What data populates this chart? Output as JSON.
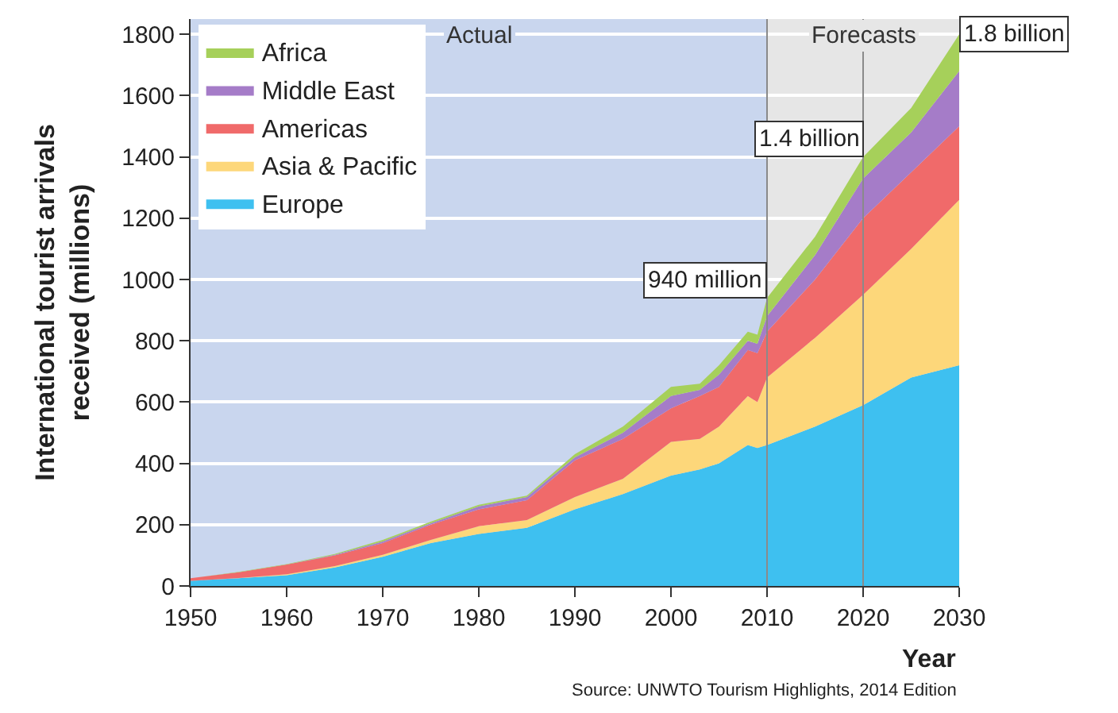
{
  "chart_data": {
    "type": "area",
    "stacked": true,
    "xlabel": "Year",
    "ylabel": "International tourist arrivals received (millions)",
    "x": [
      1950,
      1955,
      1960,
      1965,
      1970,
      1975,
      1980,
      1985,
      1990,
      1995,
      2000,
      2003,
      2005,
      2008,
      2009,
      2010,
      2015,
      2020,
      2025,
      2030
    ],
    "series": [
      {
        "name": "Europe",
        "color": "#3ec0f0",
        "values": [
          17,
          25,
          35,
          60,
          95,
          140,
          170,
          190,
          250,
          300,
          360,
          380,
          400,
          460,
          450,
          460,
          520,
          590,
          680,
          720
        ]
      },
      {
        "name": "Asia & Pacific",
        "color": "#fdd77a",
        "values": [
          0,
          1,
          3,
          5,
          7,
          10,
          25,
          25,
          40,
          50,
          110,
          100,
          120,
          160,
          150,
          220,
          290,
          360,
          420,
          540
        ]
      },
      {
        "name": "Americas",
        "color": "#f06a6a",
        "values": [
          8,
          19,
          32,
          35,
          38,
          50,
          55,
          65,
          120,
          130,
          110,
          140,
          130,
          150,
          160,
          150,
          190,
          250,
          250,
          240
        ]
      },
      {
        "name": "Middle East",
        "color": "#a57cc8",
        "values": [
          0,
          0,
          0,
          2,
          5,
          5,
          10,
          10,
          10,
          20,
          40,
          20,
          40,
          30,
          30,
          50,
          80,
          130,
          130,
          180
        ]
      },
      {
        "name": "Africa",
        "color": "#a6d05a",
        "values": [
          0,
          1,
          1,
          2,
          5,
          5,
          5,
          5,
          10,
          20,
          30,
          20,
          30,
          30,
          30,
          60,
          60,
          70,
          80,
          120
        ]
      }
    ],
    "xlim": [
      1950,
      2030
    ],
    "xticks": [
      1950,
      1960,
      1970,
      1980,
      1990,
      2000,
      2010,
      2020,
      2030
    ],
    "ylim": [
      0,
      1850
    ],
    "yticks": [
      0,
      200,
      400,
      600,
      800,
      1000,
      1200,
      1400,
      1600,
      1800
    ],
    "grid": "y",
    "legend": "top left",
    "bands": [
      {
        "axis": "x",
        "from": 1950,
        "to": 2010,
        "label": "Actual",
        "color": "#c9d6ee"
      },
      {
        "axis": "x",
        "from": 2010,
        "to": 2030,
        "label": "Forecasts",
        "color": "#e6e6e6"
      }
    ],
    "ref_lines": [
      {
        "axis": "x",
        "value": 2010,
        "color": "#8a8a8a"
      },
      {
        "axis": "x",
        "value": 2020,
        "color": "#8a8a8a"
      }
    ],
    "annotations": [
      {
        "text": "940 million",
        "x": 2010,
        "y": 940
      },
      {
        "text": "1.4 billion",
        "x": 2020,
        "y": 1400
      },
      {
        "text": "1.8 billion",
        "x": 2030,
        "y": 1800
      },
      "Source: UNWTO Tourism Highlights, 2014 Edition"
    ]
  }
}
